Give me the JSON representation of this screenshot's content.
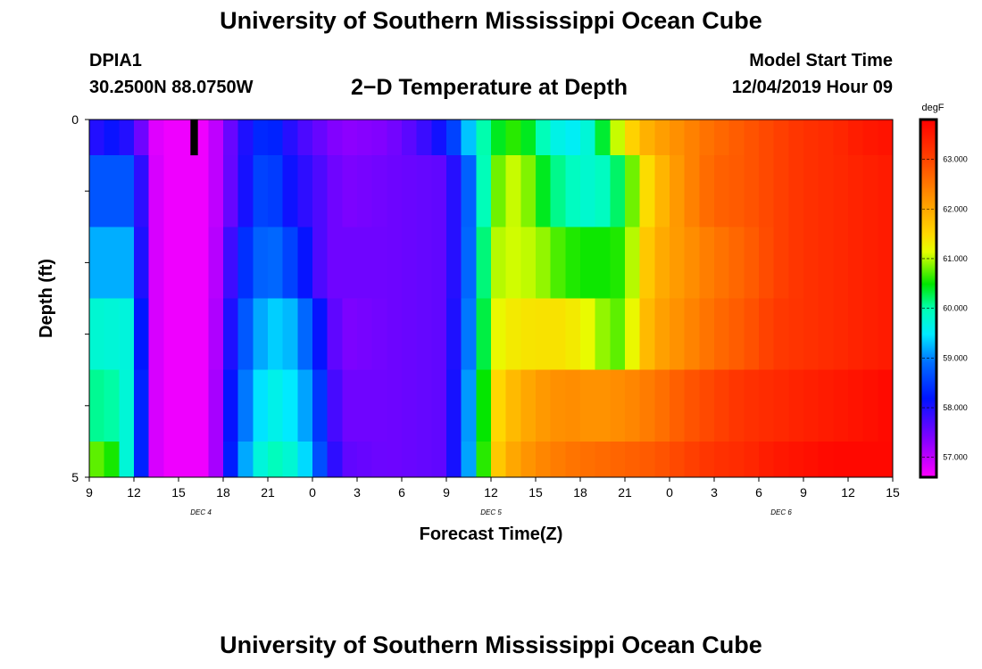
{
  "header": {
    "title": "University of Southern Mississippi Ocean Cube",
    "station_id": "DPIA1",
    "station_coords": "30.2500N 88.0750W",
    "chart_title": "2−D Temperature at Depth",
    "model_start_label": "Model Start Time",
    "model_start_value": "12/04/2019 Hour 09"
  },
  "footer": {
    "title": "University of Southern Mississippi Ocean Cube"
  },
  "chart_data": {
    "type": "heatmap",
    "title": "2−D Temperature at Depth",
    "xlabel": "Forecast Time(Z)",
    "ylabel": "Depth (ft)",
    "x_tick_labels": [
      "9",
      "12",
      "15",
      "18",
      "21",
      "0",
      "3",
      "6",
      "9",
      "12",
      "15",
      "18",
      "21",
      "0",
      "3",
      "6",
      "9",
      "12",
      "15"
    ],
    "date_labels": [
      {
        "label": "DEC 4",
        "hour_index": 7.5
      },
      {
        "label": "DEC 5",
        "hour_index": 27
      },
      {
        "label": "DEC 6",
        "hour_index": 46.5
      }
    ],
    "x_range_hours": [
      0,
      54
    ],
    "y_tick_labels": [
      "0",
      "5"
    ],
    "ylim": [
      0,
      5
    ],
    "depth_layers": [
      "layer1",
      "layer2",
      "layer3",
      "layer4",
      "layer5",
      "layer6"
    ],
    "depth_layer_spans": [
      0.5,
      1.0,
      1.0,
      1.0,
      1.0,
      0.5
    ],
    "colorbar": {
      "unit": "degF",
      "min": 56.6,
      "max": 63.8,
      "tick_values": [
        57.0,
        58.0,
        59.0,
        60.0,
        61.0,
        62.0,
        63.0
      ],
      "tick_labels": [
        "57.000",
        "58.000",
        "59.000",
        "60.000",
        "61.000",
        "62.000",
        "63.000"
      ]
    },
    "missing_cell": {
      "layer": 0,
      "hour_start": 6.8,
      "hour_end": 7.3
    },
    "temperature_keyframes": [
      [
        [
          0,
          57.9
        ],
        [
          2,
          58.2
        ],
        [
          3.5,
          57.5
        ],
        [
          4,
          56.9
        ],
        [
          5,
          56.7
        ],
        [
          8,
          56.7
        ],
        [
          9,
          57.3
        ],
        [
          10.5,
          58.0
        ],
        [
          12,
          58.5
        ],
        [
          13,
          58.1
        ],
        [
          14,
          57.8
        ],
        [
          17,
          57.3
        ],
        [
          20,
          57.4
        ],
        [
          22,
          57.7
        ],
        [
          24,
          58.2
        ],
        [
          25,
          58.9
        ],
        [
          26,
          59.7
        ],
        [
          27,
          60.3
        ],
        [
          28,
          60.5
        ],
        [
          29,
          60.7
        ],
        [
          30,
          60.1
        ],
        [
          31,
          59.8
        ],
        [
          32,
          59.5
        ],
        [
          33,
          59.6
        ],
        [
          34,
          59.9
        ],
        [
          35,
          60.8
        ],
        [
          36,
          61.3
        ],
        [
          37,
          61.8
        ],
        [
          38,
          62.0
        ],
        [
          39,
          62.2
        ],
        [
          40,
          62.3
        ],
        [
          41,
          62.5
        ],
        [
          42,
          62.6
        ],
        [
          43,
          62.7
        ],
        [
          44,
          62.8
        ],
        [
          45,
          62.9
        ],
        [
          46,
          63.0
        ],
        [
          48,
          63.2
        ],
        [
          50,
          63.3
        ],
        [
          52,
          63.5
        ],
        [
          54,
          63.6
        ]
      ],
      [
        [
          0,
          58.7
        ],
        [
          3,
          58.7
        ],
        [
          3.5,
          57.9
        ],
        [
          4,
          57.0
        ],
        [
          5,
          56.7
        ],
        [
          8,
          56.7
        ],
        [
          9,
          57.3
        ],
        [
          10,
          57.8
        ],
        [
          12,
          58.8
        ],
        [
          13,
          58.2
        ],
        [
          15,
          57.8
        ],
        [
          17,
          57.4
        ],
        [
          20,
          57.5
        ],
        [
          24,
          57.6
        ],
        [
          25,
          58.3
        ],
        [
          26,
          59.3
        ],
        [
          27,
          60.6
        ],
        [
          28,
          61.0
        ],
        [
          29,
          61.1
        ],
        [
          30,
          60.6
        ],
        [
          31,
          60.2
        ],
        [
          32,
          60.0
        ],
        [
          33,
          59.8
        ],
        [
          34,
          59.8
        ],
        [
          35,
          60.0
        ],
        [
          36,
          60.4
        ],
        [
          37,
          61.2
        ],
        [
          38,
          61.7
        ],
        [
          39,
          62.0
        ],
        [
          40,
          62.3
        ],
        [
          41,
          62.5
        ],
        [
          42,
          62.7
        ],
        [
          44,
          62.8
        ],
        [
          46,
          63.0
        ],
        [
          48,
          63.2
        ],
        [
          50,
          63.3
        ],
        [
          52,
          63.4
        ],
        [
          54,
          63.5
        ]
      ],
      [
        [
          0,
          59.2
        ],
        [
          3,
          59.2
        ],
        [
          3.5,
          58.0
        ],
        [
          4,
          57.0
        ],
        [
          5,
          56.7
        ],
        [
          8,
          56.7
        ],
        [
          9,
          57.4
        ],
        [
          10,
          58.2
        ],
        [
          12,
          59.0
        ],
        [
          13,
          58.7
        ],
        [
          14,
          58.4
        ],
        [
          15,
          57.9
        ],
        [
          16,
          57.5
        ],
        [
          20,
          57.5
        ],
        [
          24,
          57.6
        ],
        [
          25,
          58.3
        ],
        [
          26,
          59.4
        ],
        [
          27,
          60.9
        ],
        [
          28,
          61.1
        ],
        [
          30,
          61.0
        ],
        [
          32,
          60.6
        ],
        [
          34,
          60.5
        ],
        [
          36,
          60.6
        ],
        [
          37,
          61.4
        ],
        [
          38,
          61.9
        ],
        [
          40,
          62.2
        ],
        [
          42,
          62.5
        ],
        [
          44,
          62.7
        ],
        [
          46,
          63.0
        ],
        [
          48,
          63.2
        ],
        [
          50,
          63.3
        ],
        [
          52,
          63.4
        ],
        [
          54,
          63.5
        ]
      ],
      [
        [
          0,
          59.8
        ],
        [
          3,
          59.7
        ],
        [
          3.5,
          58.2
        ],
        [
          4,
          57.0
        ],
        [
          5,
          56.7
        ],
        [
          8,
          56.7
        ],
        [
          9,
          57.5
        ],
        [
          10,
          58.5
        ],
        [
          12,
          59.4
        ],
        [
          14,
          59.2
        ],
        [
          15,
          58.5
        ],
        [
          16,
          57.8
        ],
        [
          17,
          57.4
        ],
        [
          20,
          57.5
        ],
        [
          24,
          57.6
        ],
        [
          25,
          58.4
        ],
        [
          26,
          59.5
        ],
        [
          27,
          61.1
        ],
        [
          28,
          61.3
        ],
        [
          30,
          61.4
        ],
        [
          32,
          61.4
        ],
        [
          34,
          61.1
        ],
        [
          35,
          60.7
        ],
        [
          36,
          60.8
        ],
        [
          37,
          61.6
        ],
        [
          38,
          62.0
        ],
        [
          40,
          62.3
        ],
        [
          42,
          62.6
        ],
        [
          44,
          62.8
        ],
        [
          46,
          63.1
        ],
        [
          48,
          63.2
        ],
        [
          50,
          63.3
        ],
        [
          52,
          63.4
        ],
        [
          54,
          63.5
        ]
      ],
      [
        [
          0,
          60.1
        ],
        [
          2,
          60.0
        ],
        [
          3,
          59.5
        ],
        [
          3.5,
          58.3
        ],
        [
          4,
          57.0
        ],
        [
          5,
          56.7
        ],
        [
          8,
          56.7
        ],
        [
          9,
          57.6
        ],
        [
          10,
          58.7
        ],
        [
          12,
          59.7
        ],
        [
          14,
          59.4
        ],
        [
          15,
          58.9
        ],
        [
          16,
          58.0
        ],
        [
          17,
          57.5
        ],
        [
          20,
          57.5
        ],
        [
          24,
          57.6
        ],
        [
          25,
          58.5
        ],
        [
          26,
          59.7
        ],
        [
          27,
          61.3
        ],
        [
          28,
          61.7
        ],
        [
          30,
          62.1
        ],
        [
          32,
          62.3
        ],
        [
          34,
          62.2
        ],
        [
          36,
          62.3
        ],
        [
          38,
          62.5
        ],
        [
          40,
          62.8
        ],
        [
          42,
          63.0
        ],
        [
          44,
          63.2
        ],
        [
          46,
          63.3
        ],
        [
          48,
          63.4
        ],
        [
          50,
          63.5
        ],
        [
          52,
          63.6
        ],
        [
          54,
          63.7
        ]
      ],
      [
        [
          0,
          60.6
        ],
        [
          1,
          60.9
        ],
        [
          2,
          60.2
        ],
        [
          3,
          59.3
        ],
        [
          3.5,
          58.3
        ],
        [
          4,
          57.0
        ],
        [
          5,
          56.7
        ],
        [
          8,
          56.7
        ],
        [
          9,
          57.6
        ],
        [
          10,
          58.9
        ],
        [
          12,
          60.0
        ],
        [
          14,
          59.7
        ],
        [
          15,
          59.1
        ],
        [
          16,
          58.2
        ],
        [
          17,
          57.6
        ],
        [
          20,
          57.5
        ],
        [
          24,
          57.6
        ],
        [
          25,
          58.5
        ],
        [
          26,
          59.8
        ],
        [
          27,
          61.4
        ],
        [
          28,
          61.9
        ],
        [
          30,
          62.3
        ],
        [
          32,
          62.5
        ],
        [
          34,
          62.6
        ],
        [
          36,
          62.7
        ],
        [
          38,
          62.8
        ],
        [
          40,
          63.0
        ],
        [
          42,
          63.2
        ],
        [
          44,
          63.3
        ],
        [
          46,
          63.5
        ],
        [
          48,
          63.6
        ],
        [
          50,
          63.7
        ],
        [
          52,
          63.7
        ],
        [
          54,
          63.7
        ]
      ]
    ]
  }
}
